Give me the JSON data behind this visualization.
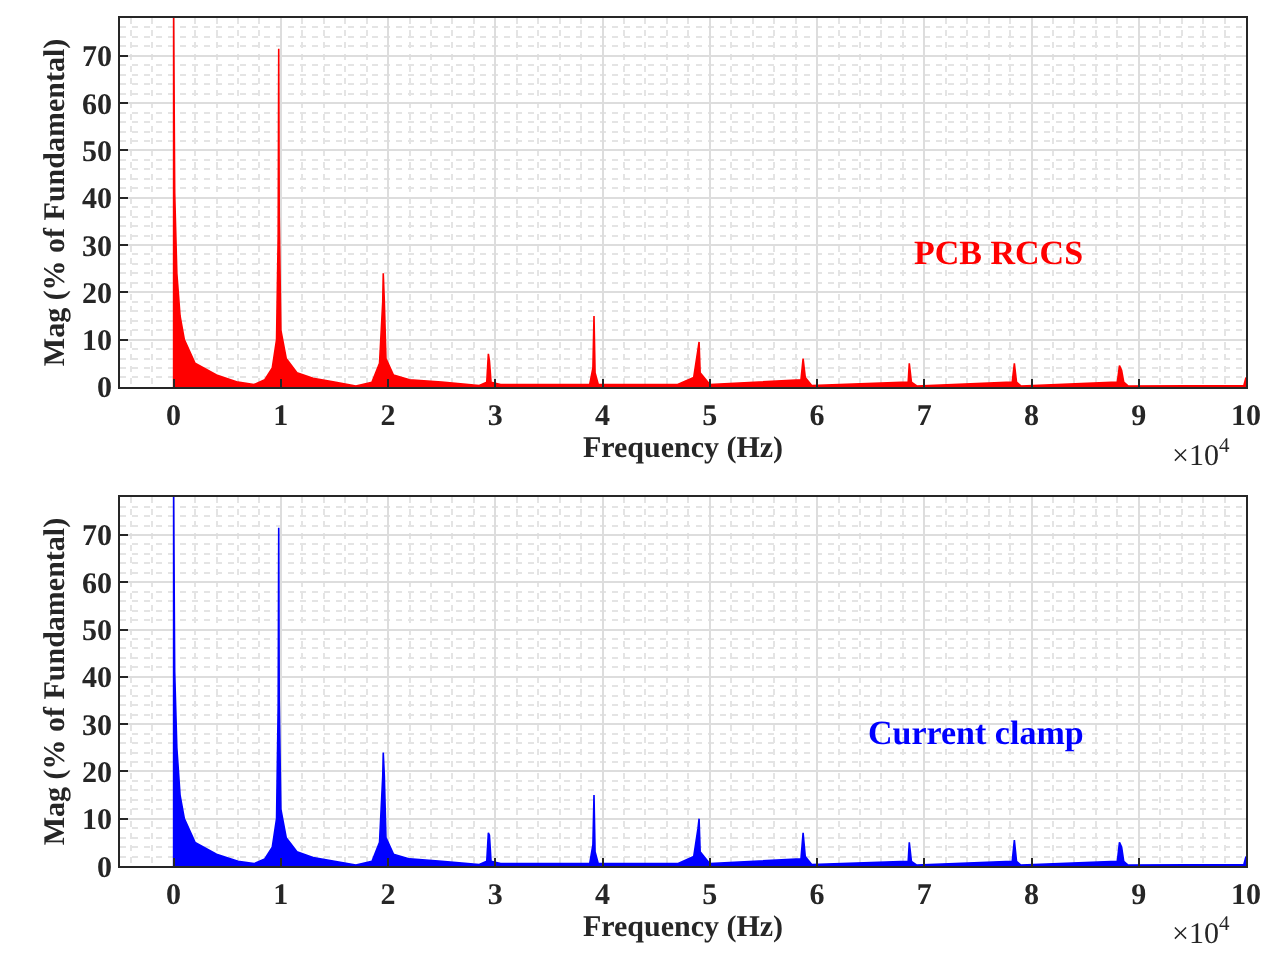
{
  "chart_data": [
    {
      "type": "area",
      "xlabel": "Frequency (Hz)",
      "ylabel": "Mag (% of Fundamental)",
      "x": [
        0,
        0,
        0.01,
        0.03,
        0.06,
        0.1,
        0.2,
        0.4,
        0.6,
        0.75,
        0.85,
        0.92,
        0.96,
        0.975,
        0.98,
        0.985,
        1,
        1.05,
        1.15,
        1.3,
        1.5,
        1.7,
        1.85,
        1.92,
        1.95,
        1.955,
        1.965,
        1.98,
        2.05,
        2.2,
        2.5,
        2.85,
        2.92,
        2.935,
        2.945,
        2.96,
        3.05,
        3.88,
        3.91,
        3.92,
        3.93,
        3.96,
        4.7,
        4.85,
        4.89,
        4.9,
        4.91,
        5,
        5.85,
        5.87,
        5.89,
        5.95,
        6.85,
        6.86,
        6.88,
        6.93,
        7.82,
        7.84,
        7.86,
        7.9,
        8.8,
        8.82,
        8.84,
        8.86,
        8.9,
        9.98,
        10
      ],
      "series": [
        {
          "color": "#ff0000",
          "values": [
            0,
            78,
            41,
            24,
            15,
            10,
            5,
            2.5,
            1,
            0.5,
            1.5,
            4,
            10,
            32,
            71.5,
            36,
            12,
            6,
            3,
            1.8,
            1,
            0.2,
            1,
            5,
            18,
            24,
            18,
            6,
            2.5,
            1.5,
            1,
            0.3,
            1,
            7,
            5.5,
            1,
            0.5,
            0.5,
            4,
            15,
            3,
            0.5,
            0.5,
            2,
            8,
            9.5,
            3,
            0.5,
            1.5,
            6,
            2,
            0.3,
            1,
            5,
            1,
            0.2,
            1,
            5,
            1,
            0.2,
            1,
            4.5,
            3.5,
            1,
            0.2,
            0.3,
            2
          ]
        }
      ],
      "xlim": [
        -0.5,
        10
      ],
      "xticks": [
        0,
        1,
        2,
        3,
        4,
        5,
        6,
        7,
        8,
        9,
        10
      ],
      "ylim": [
        0,
        78
      ],
      "yticks": [
        0,
        10,
        20,
        30,
        40,
        50,
        60,
        70
      ],
      "grid": true,
      "annotations": [
        "PCB RCCS",
        "×10$^{4}$"
      ]
    },
    {
      "type": "area",
      "xlabel": "Frequency (Hz)",
      "ylabel": "Mag (% of Fundamental)",
      "x": [
        0,
        0,
        0.01,
        0.03,
        0.06,
        0.1,
        0.2,
        0.4,
        0.6,
        0.75,
        0.85,
        0.92,
        0.96,
        0.975,
        0.98,
        0.985,
        1,
        1.05,
        1.15,
        1.3,
        1.5,
        1.7,
        1.85,
        1.92,
        1.95,
        1.955,
        1.965,
        1.98,
        2.05,
        2.2,
        2.5,
        2.85,
        2.92,
        2.935,
        2.945,
        2.96,
        3.05,
        3.88,
        3.91,
        3.92,
        3.93,
        3.96,
        4.7,
        4.85,
        4.89,
        4.9,
        4.91,
        5,
        5.85,
        5.87,
        5.89,
        5.95,
        6.85,
        6.86,
        6.88,
        6.93,
        7.82,
        7.84,
        7.86,
        7.9,
        8.8,
        8.82,
        8.84,
        8.86,
        8.9,
        9.98,
        10
      ],
      "series": [
        {
          "color": "#0000ff",
          "values": [
            0,
            78,
            41,
            25,
            15,
            10,
            5,
            2.5,
            1,
            0.5,
            1.5,
            4,
            10,
            34,
            71.5,
            35,
            12,
            6,
            3,
            1.8,
            1,
            0.2,
            1,
            5,
            19,
            24,
            19,
            6,
            2.5,
            1.5,
            1,
            0.3,
            1,
            7,
            6.5,
            1,
            0.5,
            0.5,
            4.5,
            15,
            3,
            0.5,
            0.5,
            2,
            8,
            10,
            3,
            0.5,
            1.5,
            7,
            2,
            0.3,
            1,
            5,
            1,
            0.2,
            1,
            5.5,
            1,
            0.2,
            1,
            5,
            4,
            1,
            0.2,
            0.3,
            2
          ]
        }
      ],
      "xlim": [
        -0.5,
        10
      ],
      "xticks": [
        0,
        1,
        2,
        3,
        4,
        5,
        6,
        7,
        8,
        9,
        10
      ],
      "ylim": [
        0,
        78
      ],
      "yticks": [
        0,
        10,
        20,
        30,
        40,
        50,
        60,
        70
      ],
      "grid": true,
      "annotations": [
        "Current clamp",
        "×10$^{4}$"
      ]
    }
  ]
}
